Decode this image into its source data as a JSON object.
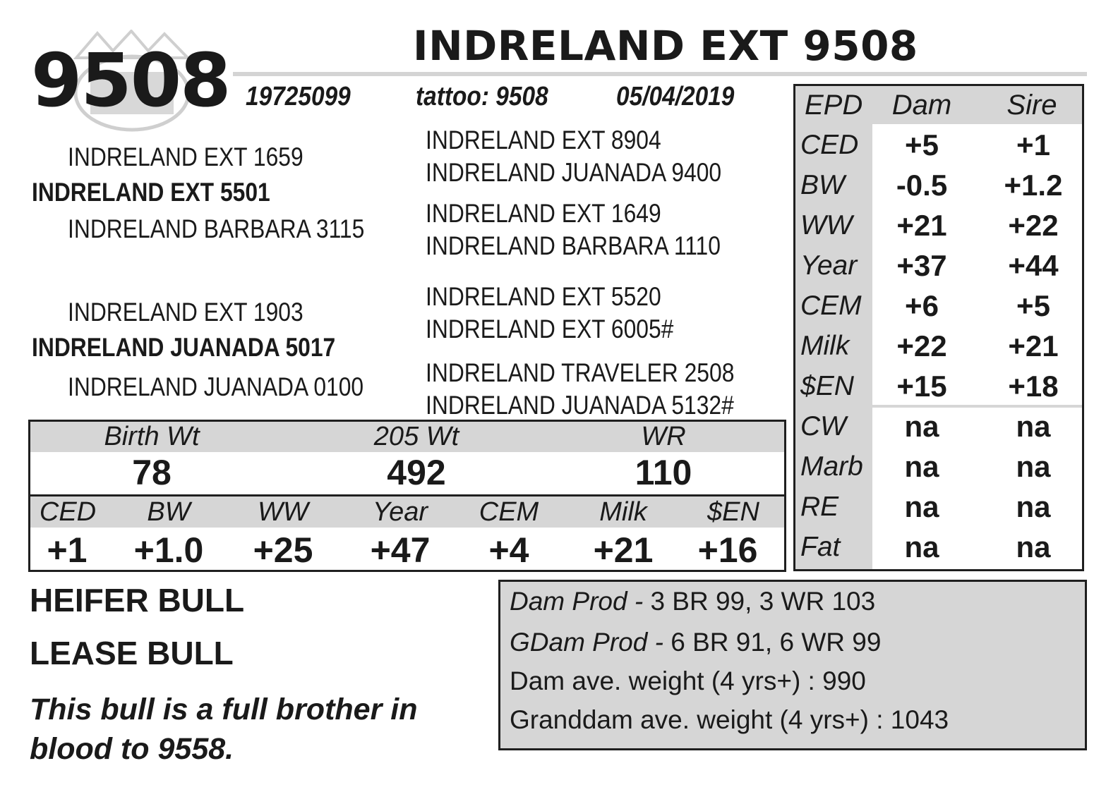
{
  "header": {
    "lot": "9508",
    "animal_name": "INDRELAND EXT 9508",
    "registration": "19725099",
    "tattoo": "tattoo: 9508",
    "birth_date": "05/04/2019"
  },
  "pedigree": {
    "sire": "INDRELAND EXT 5501",
    "sire_sire": "INDRELAND EXT 1659",
    "sire_dam": "INDRELAND BARBARA 3115",
    "sire_sire_sire": "INDRELAND EXT 8904",
    "sire_sire_dam": "INDRELAND JUANADA 9400",
    "sire_dam_sire": "INDRELAND EXT 1649",
    "sire_dam_dam": "INDRELAND BARBARA 1110",
    "dam": "INDRELAND JUANADA 5017",
    "dam_sire": "INDRELAND EXT 1903",
    "dam_dam": "INDRELAND JUANADA 0100",
    "dam_sire_sire": "INDRELAND EXT 5520",
    "dam_sire_dam": "INDRELAND EXT 6005#",
    "dam_dam_sire": "INDRELAND TRAVELER 2508",
    "dam_dam_dam": "INDRELAND JUANADA 5132#"
  },
  "epd_table": {
    "headers": [
      "EPD",
      "Dam",
      "Sire"
    ],
    "rows": [
      {
        "trait": "CED",
        "dam": "+5",
        "sire": "+1"
      },
      {
        "trait": "BW",
        "dam": "-0.5",
        "sire": "+1.2"
      },
      {
        "trait": "WW",
        "dam": "+21",
        "sire": "+22"
      },
      {
        "trait": "Year",
        "dam": "+37",
        "sire": "+44"
      },
      {
        "trait": "CEM",
        "dam": "+6",
        "sire": "+5"
      },
      {
        "trait": "Milk",
        "dam": "+22",
        "sire": "+21"
      },
      {
        "trait": "$EN",
        "dam": "+15",
        "sire": "+18"
      },
      {
        "trait": "CW",
        "dam": "na",
        "sire": "na"
      },
      {
        "trait": "Marb",
        "dam": "na",
        "sire": "na"
      },
      {
        "trait": "RE",
        "dam": "na",
        "sire": "na"
      },
      {
        "trait": "Fat",
        "dam": "na",
        "sire": "na"
      }
    ]
  },
  "performance": {
    "headers": [
      "Birth Wt",
      "205 Wt",
      "WR"
    ],
    "values": [
      "78",
      "492",
      "110"
    ]
  },
  "own_epds": {
    "headers": [
      "CED",
      "BW",
      "WW",
      "Year",
      "CEM",
      "Milk",
      "$EN"
    ],
    "values": [
      "+1",
      "+1.0",
      "+25",
      "+47",
      "+4",
      "+21",
      "+16"
    ]
  },
  "tags": [
    "HEIFER BULL",
    "LEASE BULL"
  ],
  "note": "This bull is a full brother in blood to 9558.",
  "production": {
    "dam_prod_label": "Dam Prod -",
    "dam_prod_value": "3 BR 99, 3 WR 103",
    "gdam_prod_label": "GDam Prod -",
    "gdam_prod_value": "6 BR 91, 6 WR 99",
    "dam_weight": "Dam ave. weight (4 yrs+) : 990",
    "granddam_weight": "Granddam ave. weight (4 yrs+) : 1043"
  }
}
